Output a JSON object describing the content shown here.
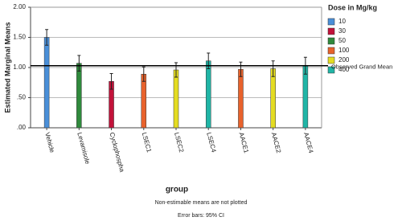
{
  "chart_data": {
    "type": "bar",
    "y_label": "Estimated Marginal Means",
    "x_label": "group",
    "legend_title": "Dose in Mg/kg",
    "notes": [
      "Non-estimable means are not plotted",
      "Error bars: 95% CI"
    ],
    "categories": [
      "Vehicle",
      "Levamisole",
      "Cyclophospha",
      "LSEC1",
      "LSEC2",
      "LSEC4",
      "AACE1",
      "AACE2",
      "AACE4"
    ],
    "series": [
      {
        "name": "10",
        "color": "#4a8fd8",
        "values": [
          1.5,
          null,
          null,
          null,
          null,
          null,
          null,
          null,
          null
        ],
        "errors": [
          0.13,
          null,
          null,
          null,
          null,
          null,
          null,
          null,
          null
        ]
      },
      {
        "name": "30",
        "color": "#c2123a",
        "values": [
          null,
          null,
          0.77,
          null,
          null,
          null,
          null,
          null,
          null
        ],
        "errors": [
          null,
          null,
          0.13,
          null,
          null,
          null,
          null,
          null,
          null
        ]
      },
      {
        "name": "50",
        "color": "#2f8a3c",
        "values": [
          null,
          1.07,
          null,
          null,
          null,
          null,
          null,
          null,
          null
        ],
        "errors": [
          null,
          0.13,
          null,
          null,
          null,
          null,
          null,
          null,
          null
        ]
      },
      {
        "name": "100",
        "color": "#e8622c",
        "values": [
          null,
          null,
          null,
          0.89,
          null,
          null,
          0.97,
          null,
          null
        ],
        "errors": [
          null,
          null,
          null,
          0.12,
          null,
          null,
          0.12,
          null,
          null
        ]
      },
      {
        "name": "200",
        "color": "#e4dc22",
        "values": [
          null,
          null,
          null,
          null,
          0.96,
          null,
          null,
          0.98,
          null
        ],
        "errors": [
          null,
          null,
          null,
          null,
          0.12,
          null,
          null,
          0.13,
          null
        ]
      },
      {
        "name": "400",
        "color": "#20b5a6",
        "values": [
          null,
          null,
          null,
          null,
          null,
          1.11,
          null,
          null,
          1.03
        ],
        "errors": [
          null,
          null,
          null,
          null,
          null,
          0.13,
          null,
          null,
          0.14
        ]
      }
    ],
    "reference_line": {
      "value": 1.03,
      "label": "Observed Grand Mean"
    },
    "ylim": [
      0,
      2
    ],
    "yticks": [
      {
        "value": 0,
        "label": ".00"
      },
      {
        "value": 0.5,
        "label": ".50"
      },
      {
        "value": 1,
        "label": "1.00"
      },
      {
        "value": 1.5,
        "label": "1.50"
      },
      {
        "value": 2,
        "label": "2.00"
      }
    ],
    "grid": true
  }
}
